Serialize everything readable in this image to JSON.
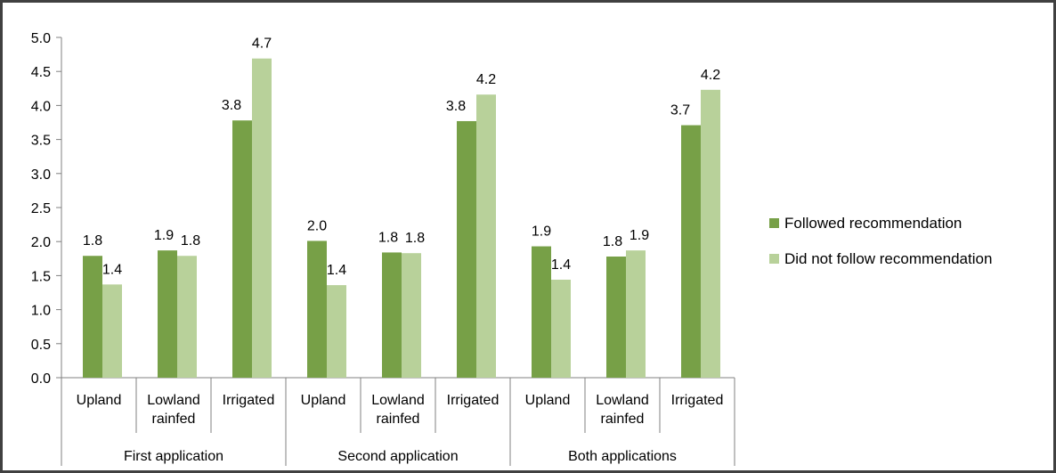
{
  "chart_data": {
    "type": "bar",
    "title": "",
    "xlabel": "",
    "ylabel": "",
    "ylim": [
      0,
      5
    ],
    "yticks": [
      "0.0",
      "0.5",
      "1.0",
      "1.5",
      "2.0",
      "2.5",
      "3.0",
      "3.5",
      "4.0",
      "4.5",
      "5.0"
    ],
    "groups": [
      "First application",
      "Second application",
      "Both applications"
    ],
    "categories": [
      [
        "Upland"
      ],
      [
        "Lowland",
        "rainfed"
      ],
      [
        "Irrigated"
      ],
      [
        "Upland"
      ],
      [
        "Lowland",
        "rainfed"
      ],
      [
        "Irrigated"
      ],
      [
        "Upland"
      ],
      [
        "Lowland",
        "rainfed"
      ],
      [
        "Irrigated"
      ]
    ],
    "series": [
      {
        "name": "Followed recommendation",
        "color": "#77A047",
        "values": [
          1.8,
          1.9,
          3.8,
          2.0,
          1.8,
          3.8,
          1.9,
          1.8,
          3.7
        ],
        "labels": [
          "1.8",
          "1.9",
          "3.8",
          "2.0",
          "1.8",
          "3.8",
          "1.9",
          "1.8",
          "3.7"
        ],
        "plot": [
          1.79,
          1.87,
          3.78,
          2.01,
          1.84,
          3.77,
          1.93,
          1.78,
          3.71
        ]
      },
      {
        "name": "Did not follow recommendation",
        "color": "#B8D19A",
        "values": [
          1.4,
          1.8,
          4.7,
          1.4,
          1.8,
          4.2,
          1.4,
          1.9,
          4.2
        ],
        "labels": [
          "1.4",
          "1.8",
          "4.7",
          "1.4",
          "1.8",
          "4.2",
          "1.4",
          "1.9",
          "4.2"
        ],
        "plot": [
          1.37,
          1.79,
          4.69,
          1.36,
          1.83,
          4.16,
          1.44,
          1.87,
          4.23
        ]
      }
    ],
    "legend_position": "right"
  }
}
